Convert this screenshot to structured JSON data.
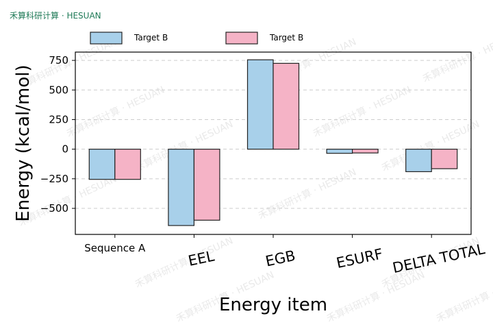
{
  "brand": {
    "watermark_text": "禾算科研计算 · HESUAN"
  },
  "colors": {
    "series1": "#a8d0ea",
    "series2": "#f5b3c6",
    "stroke": "#222222",
    "grid": "#cccccc"
  },
  "chart_data": {
    "type": "bar",
    "categories": [
      "Sequence A",
      "EEL",
      "EGB",
      "ESURF",
      "DELTA TOTAL"
    ],
    "series": [
      {
        "name": "Target B",
        "values": [
          -255,
          -645,
          755,
          -35,
          -190
        ]
      },
      {
        "name": "Target B",
        "values": [
          -255,
          -600,
          725,
          -32,
          -165
        ]
      }
    ],
    "xlabel": "Energy item",
    "ylabel": "Energy (kcal/mol)",
    "ylim": [
      -720,
      820
    ],
    "yticks": [
      -500,
      -250,
      0,
      250,
      500,
      750
    ],
    "grid": "horizontal dashed",
    "legend": "top"
  }
}
